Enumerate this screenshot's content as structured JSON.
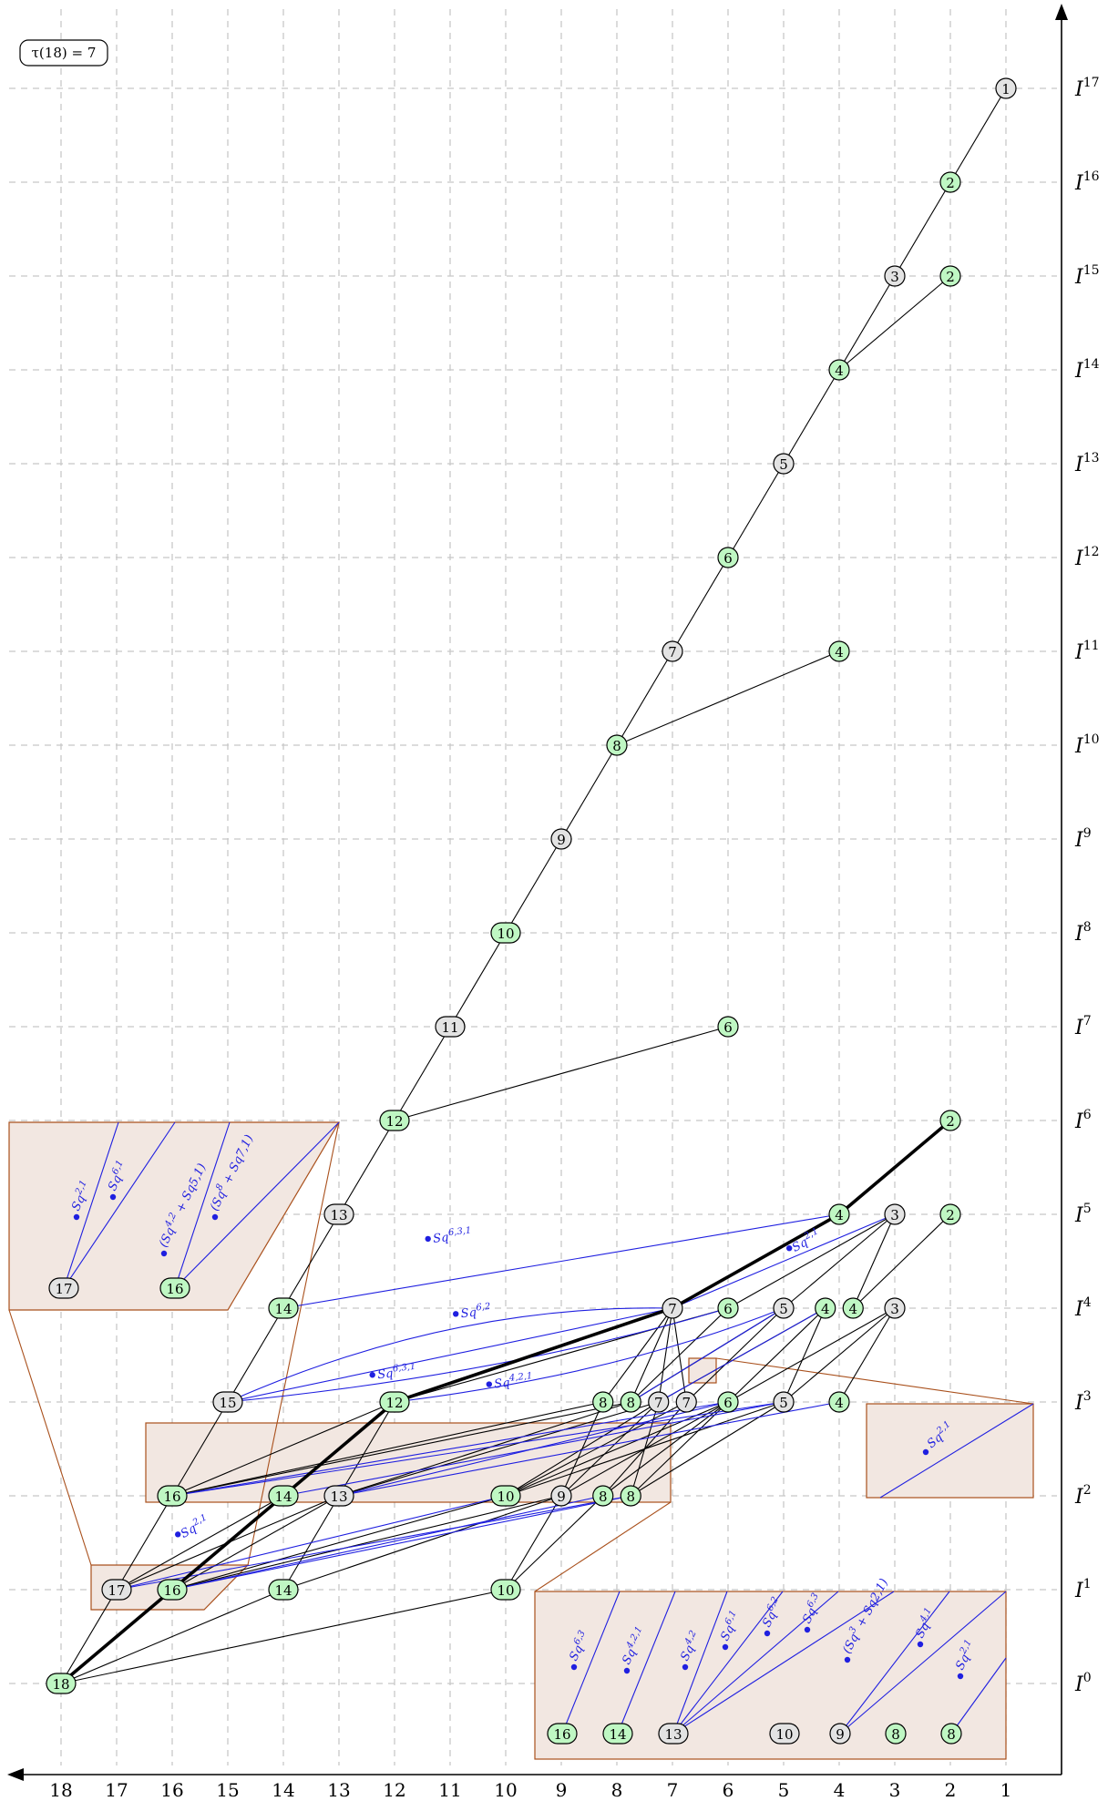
{
  "tau_label": "τ(18) = 7",
  "x_ticks": [
    "18",
    "17",
    "16",
    "15",
    "14",
    "13",
    "12",
    "11",
    "10",
    "9",
    "8",
    "7",
    "6",
    "5",
    "4",
    "3",
    "2",
    "1"
  ],
  "row_labels": [
    "I",
    "I",
    "I",
    "I",
    "I",
    "I",
    "I",
    "I",
    "I",
    "I",
    "I",
    "I",
    "I",
    "I",
    "I",
    "I",
    "I",
    "I"
  ],
  "row_exponents": [
    "0",
    "1",
    "2",
    "3",
    "4",
    "5",
    "6",
    "7",
    "8",
    "9",
    "10",
    "11",
    "12",
    "13",
    "14",
    "15",
    "16",
    "17"
  ],
  "colors": {
    "node_green": "#bff7c3",
    "node_gray": "#e3e3e3",
    "squares": "#1f1fe0",
    "box_fill": "#f2e7e1",
    "box_stroke": "#a9501c"
  },
  "nodes": [
    {
      "id": "r0_18",
      "label": "18",
      "col": 18,
      "row": 0,
      "green": true
    },
    {
      "id": "r1_17",
      "label": "17",
      "col": 17,
      "row": 1,
      "green": false
    },
    {
      "id": "r1_16",
      "label": "16",
      "col": 16,
      "row": 1,
      "green": true
    },
    {
      "id": "r1_14",
      "label": "14",
      "col": 14,
      "row": 1,
      "green": true
    },
    {
      "id": "r1_10",
      "label": "10",
      "col": 10,
      "row": 1,
      "green": true
    },
    {
      "id": "r2_16",
      "label": "16",
      "col": 16,
      "row": 2,
      "green": true
    },
    {
      "id": "r2_14",
      "label": "14",
      "col": 14,
      "row": 2,
      "green": true
    },
    {
      "id": "r2_13",
      "label": "13",
      "col": 13,
      "row": 2,
      "green": false
    },
    {
      "id": "r2_10",
      "label": "10",
      "col": 10,
      "row": 2,
      "green": true
    },
    {
      "id": "r2_9",
      "label": "9",
      "col": 9,
      "row": 2,
      "green": false
    },
    {
      "id": "r2_8a",
      "label": "8",
      "col": 8.25,
      "row": 2,
      "green": true
    },
    {
      "id": "r2_8b",
      "label": "8",
      "col": 7.75,
      "row": 2,
      "green": true
    },
    {
      "id": "r3_15",
      "label": "15",
      "col": 15,
      "row": 3,
      "green": false
    },
    {
      "id": "r3_12",
      "label": "12",
      "col": 12,
      "row": 3,
      "green": true
    },
    {
      "id": "r3_8a",
      "label": "8",
      "col": 8.25,
      "row": 3,
      "green": true
    },
    {
      "id": "r3_8b",
      "label": "8",
      "col": 7.75,
      "row": 3,
      "green": true
    },
    {
      "id": "r3_7a",
      "label": "7",
      "col": 7.25,
      "row": 3,
      "green": false
    },
    {
      "id": "r3_7b",
      "label": "7",
      "col": 6.75,
      "row": 3,
      "green": false
    },
    {
      "id": "r3_6",
      "label": "6",
      "col": 6,
      "row": 3,
      "green": true
    },
    {
      "id": "r3_5",
      "label": "5",
      "col": 5,
      "row": 3,
      "green": false
    },
    {
      "id": "r3_4",
      "label": "4",
      "col": 4,
      "row": 3,
      "green": true
    },
    {
      "id": "r4_14",
      "label": "14",
      "col": 14,
      "row": 4,
      "green": true
    },
    {
      "id": "r4_7",
      "label": "7",
      "col": 7,
      "row": 4,
      "green": false
    },
    {
      "id": "r4_6",
      "label": "6",
      "col": 6,
      "row": 4,
      "green": true
    },
    {
      "id": "r4_5",
      "label": "5",
      "col": 5,
      "row": 4,
      "green": false
    },
    {
      "id": "r4_4a",
      "label": "4",
      "col": 4.25,
      "row": 4,
      "green": true
    },
    {
      "id": "r4_4b",
      "label": "4",
      "col": 3.75,
      "row": 4,
      "green": true
    },
    {
      "id": "r4_3",
      "label": "3",
      "col": 3,
      "row": 4,
      "green": false
    },
    {
      "id": "r5_13",
      "label": "13",
      "col": 13,
      "row": 5,
      "green": false
    },
    {
      "id": "r5_4",
      "label": "4",
      "col": 4,
      "row": 5,
      "green": true
    },
    {
      "id": "r5_3",
      "label": "3",
      "col": 3,
      "row": 5,
      "green": false
    },
    {
      "id": "r5_2",
      "label": "2",
      "col": 2,
      "row": 5,
      "green": true
    },
    {
      "id": "r6_12",
      "label": "12",
      "col": 12,
      "row": 6,
      "green": true
    },
    {
      "id": "r6_2",
      "label": "2",
      "col": 2,
      "row": 6,
      "green": true
    },
    {
      "id": "r7_11",
      "label": "11",
      "col": 11,
      "row": 7,
      "green": false
    },
    {
      "id": "r7_6",
      "label": "6",
      "col": 6,
      "row": 7,
      "green": true
    },
    {
      "id": "r8_10",
      "label": "10",
      "col": 10,
      "row": 8,
      "green": true
    },
    {
      "id": "r9_9",
      "label": "9",
      "col": 9,
      "row": 9,
      "green": false
    },
    {
      "id": "r10_8",
      "label": "8",
      "col": 8,
      "row": 10,
      "green": true
    },
    {
      "id": "r11_7",
      "label": "7",
      "col": 7,
      "row": 11,
      "green": false
    },
    {
      "id": "r11_4",
      "label": "4",
      "col": 4,
      "row": 11,
      "green": true
    },
    {
      "id": "r12_6",
      "label": "6",
      "col": 6,
      "row": 12,
      "green": true
    },
    {
      "id": "r13_5",
      "label": "5",
      "col": 5,
      "row": 13,
      "green": false
    },
    {
      "id": "r14_4",
      "label": "4",
      "col": 4,
      "row": 14,
      "green": true
    },
    {
      "id": "r15_3",
      "label": "3",
      "col": 3,
      "row": 15,
      "green": false
    },
    {
      "id": "r15_2",
      "label": "2",
      "col": 2,
      "row": 15,
      "green": true
    },
    {
      "id": "r16_2",
      "label": "2",
      "col": 2,
      "row": 16,
      "green": true
    },
    {
      "id": "r17_1",
      "label": "1",
      "col": 1,
      "row": 17,
      "green": false
    }
  ],
  "edges": [
    [
      "r0_18",
      "r1_17"
    ],
    [
      "r0_18",
      "r1_16"
    ],
    [
      "r0_18",
      "r1_14"
    ],
    [
      "r0_18",
      "r1_10"
    ],
    [
      "r1_17",
      "r2_16"
    ],
    [
      "r1_17",
      "r2_14"
    ],
    [
      "r1_17",
      "r2_13"
    ],
    [
      "r1_16",
      "r2_14"
    ],
    [
      "r1_16",
      "r2_13"
    ],
    [
      "r1_16",
      "r2_10"
    ],
    [
      "r1_16",
      "r2_9"
    ],
    [
      "r1_14",
      "r2_13"
    ],
    [
      "r1_14",
      "r2_9"
    ],
    [
      "r1_10",
      "r2_9"
    ],
    [
      "r1_10",
      "r2_8a"
    ],
    [
      "r2_16",
      "r3_15"
    ],
    [
      "r2_16",
      "r3_12"
    ],
    [
      "r2_16",
      "r3_8a"
    ],
    [
      "r2_16",
      "r3_8b"
    ],
    [
      "r2_14",
      "r3_12"
    ],
    [
      "r2_13",
      "r3_12"
    ],
    [
      "r2_13",
      "r3_8b"
    ],
    [
      "r2_13",
      "r3_7a"
    ],
    [
      "r2_10",
      "r3_7b"
    ],
    [
      "r2_10",
      "r3_6"
    ],
    [
      "r2_10",
      "r3_5"
    ],
    [
      "r2_10",
      "r3_7a"
    ],
    [
      "r2_9",
      "r3_8a"
    ],
    [
      "r2_9",
      "r3_7a"
    ],
    [
      "r2_9",
      "r3_6"
    ],
    [
      "r2_8a",
      "r3_7b"
    ],
    [
      "r2_8a",
      "r3_6"
    ],
    [
      "r2_8b",
      "r3_7a"
    ],
    [
      "r2_8b",
      "r3_5"
    ],
    [
      "r2_8b",
      "r3_6"
    ],
    [
      "r3_15",
      "r4_14"
    ],
    [
      "r3_12",
      "r4_6"
    ],
    [
      "r3_8a",
      "r4_7"
    ],
    [
      "r3_8b",
      "r4_7"
    ],
    [
      "r3_8b",
      "r4_5"
    ],
    [
      "r3_8b",
      "r4_6"
    ],
    [
      "r3_7a",
      "r4_7"
    ],
    [
      "r3_7a",
      "r4_4a"
    ],
    [
      "r3_7b",
      "r4_7"
    ],
    [
      "r3_7b",
      "r4_5"
    ],
    [
      "r3_6",
      "r4_4a"
    ],
    [
      "r3_6",
      "r4_3"
    ],
    [
      "r3_5",
      "r4_4a"
    ],
    [
      "r3_5",
      "r4_3"
    ],
    [
      "r3_4",
      "r4_3"
    ],
    [
      "r4_14",
      "r5_13"
    ],
    [
      "r4_6",
      "r5_3"
    ],
    [
      "r4_5",
      "r5_3"
    ],
    [
      "r4_4b",
      "r5_3"
    ],
    [
      "r4_4b",
      "r5_2"
    ],
    [
      "r5_13",
      "r6_12"
    ],
    [
      "r6_12",
      "r7_11"
    ],
    [
      "r6_12",
      "r7_6"
    ],
    [
      "r7_11",
      "r8_10"
    ],
    [
      "r8_10",
      "r9_9"
    ],
    [
      "r9_9",
      "r10_8"
    ],
    [
      "r10_8",
      "r11_7"
    ],
    [
      "r10_8",
      "r11_4"
    ],
    [
      "r11_7",
      "r12_6"
    ],
    [
      "r12_6",
      "r13_5"
    ],
    [
      "r13_5",
      "r14_4"
    ],
    [
      "r14_4",
      "r15_3"
    ],
    [
      "r14_4",
      "r15_2"
    ],
    [
      "r15_3",
      "r16_2"
    ],
    [
      "r16_2",
      "r17_1"
    ]
  ],
  "thick_path": [
    "r0_18",
    "r1_16",
    "r2_14",
    "r3_12",
    "r4_7",
    "r5_4",
    "r6_2"
  ],
  "blue_edges": [
    [
      "r1_17",
      "r2_10"
    ],
    [
      "r1_17",
      "r2_8b"
    ],
    [
      "r1_16",
      "r2_8a"
    ],
    [
      "r1_16",
      "r2_8b"
    ],
    [
      "r2_16",
      "r3_6"
    ],
    [
      "r2_16",
      "r3_5"
    ],
    [
      "r2_13",
      "r3_4"
    ],
    [
      "r2_13",
      "r3_6"
    ],
    [
      "r2_14",
      "r3_5"
    ],
    [
      "r3_15",
      "r4_7"
    ],
    [
      "r3_12",
      "r4_7"
    ],
    [
      "r3_8b",
      "r4_5"
    ],
    [
      "r3_7a",
      "r4_4a"
    ],
    [
      "r4_14",
      "r5_4"
    ],
    [
      "r4_7",
      "r5_3"
    ]
  ],
  "sq_labels": [
    {
      "text": "Sq6,3,1",
      "at": [
        11.3,
        4.7
      ]
    },
    {
      "text": "Sq6,2",
      "at": [
        10.8,
        3.9
      ]
    },
    {
      "text": "Sq6,3,1",
      "at": [
        12.3,
        3.25
      ]
    },
    {
      "text": "Sq4,2,1",
      "at": [
        10.2,
        3.15
      ]
    },
    {
      "text": "Sq2,1",
      "at": [
        4.8,
        4.6
      ]
    },
    {
      "text": "Sq2,1",
      "at": [
        15.8,
        1.55
      ]
    }
  ],
  "inset_top_left": {
    "nodes": [
      {
        "label": "17",
        "green": false
      },
      {
        "label": "16",
        "green": true
      }
    ],
    "sq": [
      "Sq2,1",
      "Sq6,1",
      "(Sq4,2 + Sq5,1)",
      "(Sq8 + Sq7,1)"
    ]
  },
  "inset_mid": {
    "sq": [
      "Sq2,1"
    ]
  },
  "inset_bottom": {
    "nodes": [
      {
        "label": "16",
        "green": true
      },
      {
        "label": "14",
        "green": true
      },
      {
        "label": "13",
        "green": false
      },
      {
        "label": "10",
        "green": false
      },
      {
        "label": "9",
        "green": false
      },
      {
        "label": "8",
        "green": true
      },
      {
        "label": "8",
        "green": true
      }
    ],
    "sq": [
      "Sq6,3",
      "Sq4,2,1",
      "Sq4,2",
      "Sq6,1",
      "Sq6,2",
      "Sq6,3",
      "(Sq3 + Sq2,1)",
      "Sq4,1",
      "Sq2,1"
    ]
  }
}
